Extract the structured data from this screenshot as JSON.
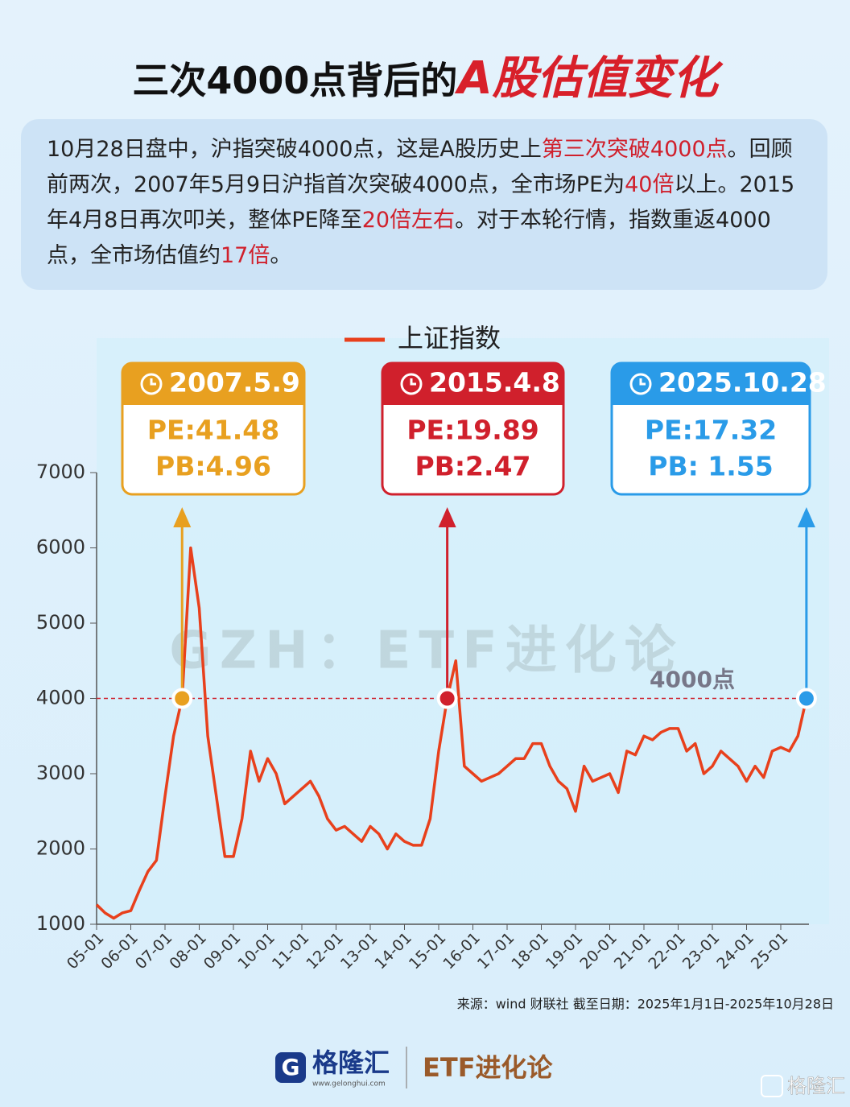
{
  "header": {
    "title": "三次4000点背后的",
    "title_highlight": "A股估值变化"
  },
  "intro": [
    {
      "text": "10月28日盘中，沪指突破4000点，这是A股历史上",
      "highlight": false
    },
    {
      "text": "第三次突破4000点",
      "highlight": true
    },
    {
      "text": "。回顾前两次，2007年5月9日沪指首次突破4000点，全市场PE为",
      "highlight": false
    },
    {
      "text": "40倍",
      "highlight": true
    },
    {
      "text": "以上。2015年4月8日再次叩关，整体PE降至",
      "highlight": false
    },
    {
      "text": "20倍左右",
      "highlight": true
    },
    {
      "text": "。对于本轮行情，指数重返4000点，全市场估值约",
      "highlight": false
    },
    {
      "text": "17倍",
      "highlight": true
    },
    {
      "text": "。",
      "highlight": false
    }
  ],
  "chart_data": {
    "type": "line",
    "categories": [
      "05-01",
      null,
      null,
      null,
      "06-01",
      null,
      null,
      null,
      "07-01",
      null,
      null,
      null,
      "08-01",
      null,
      null,
      null,
      "09-01",
      null,
      null,
      null,
      "10-01",
      null,
      null,
      null,
      "11-01",
      null,
      null,
      null,
      "12-01",
      null,
      null,
      null,
      "13-01",
      null,
      null,
      null,
      "14-01",
      null,
      null,
      null,
      "15-01",
      null,
      null,
      null,
      "16-01",
      null,
      null,
      null,
      "17-01",
      null,
      null,
      null,
      "18-01",
      null,
      null,
      null,
      "19-01",
      null,
      null,
      null,
      "20-01",
      null,
      null,
      null,
      "21-01",
      null,
      null,
      null,
      "22-01",
      null,
      null,
      null,
      "23-01",
      null,
      null,
      null,
      "24-01",
      null,
      null,
      null,
      "25-01",
      null,
      null,
      null
    ],
    "series": [
      {
        "name": "上证指数",
        "color": "#e8401c",
        "values": [
          1260,
          1150,
          1080,
          1150,
          1180,
          1450,
          1700,
          1850,
          2700,
          3500,
          4000,
          6000,
          5200,
          3500,
          2700,
          1900,
          1900,
          2400,
          3300,
          2900,
          3200,
          3000,
          2600,
          2700,
          2800,
          2900,
          2700,
          2400,
          2250,
          2300,
          2200,
          2100,
          2300,
          2200,
          2000,
          2200,
          2100,
          2050,
          2050,
          2400,
          3300,
          4000,
          4500,
          3100,
          3000,
          2900,
          2950,
          3000,
          3100,
          3200,
          3200,
          3400,
          3400,
          3100,
          2900,
          2800,
          2500,
          3100,
          2900,
          2950,
          3000,
          2750,
          3300,
          3250,
          3500,
          3450,
          3550,
          3600,
          3600,
          3300,
          3400,
          3000,
          3100,
          3300,
          3200,
          3100,
          2900,
          3100,
          2950,
          3300,
          3350,
          3300,
          3500,
          4000
        ]
      }
    ],
    "ylim": [
      1000,
      7000
    ],
    "yticks": [
      1000,
      2000,
      3000,
      4000,
      5000,
      6000,
      7000
    ],
    "reference_line": {
      "value": 4000,
      "label": "4000点"
    },
    "annotations": [
      {
        "point": 10,
        "date": "2007.5.9",
        "pe": "PE:41.48",
        "pb": "PB:4.96",
        "color": "#e8a020"
      },
      {
        "point": 41,
        "date": "2015.4.8",
        "pe": "PE:19.89",
        "pb": "PB:2.47",
        "color": "#d0202c"
      },
      {
        "point": 83,
        "date": "2025.10.28",
        "pe": "PE:17.32",
        "pb": "PB: 1.55",
        "color": "#2a9be8"
      }
    ],
    "watermark": "GZH：ETF进化论",
    "source": "来源：wind 财联社 截至日期：2025年1月1日-2025年10月28日"
  },
  "footer": {
    "brand": "格隆汇",
    "site": "www.gelonghui.com",
    "channel": "ETF进化论",
    "corner": "格隆汇"
  }
}
